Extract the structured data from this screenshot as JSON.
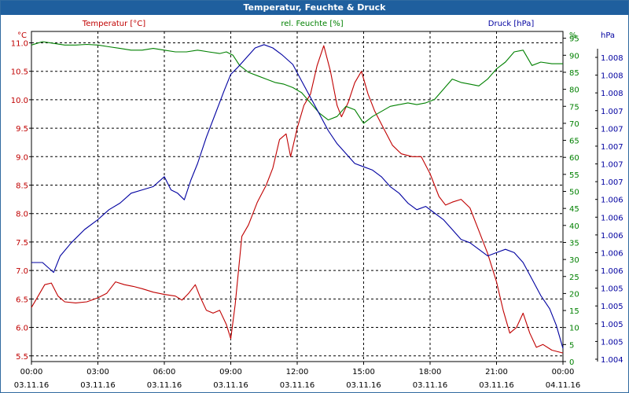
{
  "window": {
    "title": "Temperatur, Feuchte & Druck"
  },
  "chart_data": {
    "type": "line",
    "title": "Temperatur, Feuchte & Druck",
    "x_ticks": [
      {
        "time": "00:00",
        "date": "03.11.16"
      },
      {
        "time": "03:00",
        "date": "03.11.16"
      },
      {
        "time": "06:00",
        "date": "03.11.16"
      },
      {
        "time": "09:00",
        "date": "03.11.16"
      },
      {
        "time": "12:00",
        "date": "03.11.16"
      },
      {
        "time": "15:00",
        "date": "03.11.16"
      },
      {
        "time": "18:00",
        "date": "03.11.16"
      },
      {
        "time": "21:00",
        "date": "03.11.16"
      },
      {
        "time": "00:00",
        "date": "04.11.16"
      }
    ],
    "x_range_hours": [
      0,
      24
    ],
    "grid": true,
    "axes": {
      "temperature": {
        "label": "Temperatur [°C]",
        "unit": "°C",
        "color": "#c00000",
        "range": [
          5.4,
          11.2
        ],
        "ticks": [
          "5.5",
          "6.0",
          "6.5",
          "7.0",
          "7.5",
          "8.0",
          "8.5",
          "9.0",
          "9.5",
          "10.0",
          "10.5",
          "11.0"
        ]
      },
      "humidity": {
        "label": "rel. Feuchte [%]",
        "unit": "%",
        "color": "#008000",
        "range": [
          0,
          97
        ],
        "ticks": [
          "0",
          "5",
          "10",
          "15",
          "20",
          "25",
          "30",
          "35",
          "40",
          "45",
          "50",
          "55",
          "60",
          "65",
          "70",
          "75",
          "80",
          "85",
          "90",
          "95"
        ]
      },
      "pressure": {
        "label": "Druck [hPa]",
        "unit": "hPa",
        "color": "#0000a0",
        "ticks": [
          "1.004",
          "1.005",
          "1.005",
          "1.005",
          "1.005",
          "1.006",
          "1.006",
          "1.006",
          "1.006",
          "1.006",
          "1.007",
          "1.007",
          "1.007",
          "1.007",
          "1.007",
          "1.008",
          "1.008",
          "1.008"
        ]
      }
    },
    "series": [
      {
        "name": "Temperatur [°C]",
        "color": "#c00000",
        "points": [
          [
            0.0,
            6.35
          ],
          [
            0.3,
            6.55
          ],
          [
            0.6,
            6.75
          ],
          [
            0.9,
            6.78
          ],
          [
            1.2,
            6.55
          ],
          [
            1.5,
            6.45
          ],
          [
            2.0,
            6.43
          ],
          [
            2.5,
            6.45
          ],
          [
            3.0,
            6.52
          ],
          [
            3.4,
            6.6
          ],
          [
            3.8,
            6.8
          ],
          [
            4.2,
            6.75
          ],
          [
            4.6,
            6.72
          ],
          [
            5.0,
            6.68
          ],
          [
            5.5,
            6.62
          ],
          [
            6.0,
            6.58
          ],
          [
            6.5,
            6.55
          ],
          [
            6.8,
            6.48
          ],
          [
            7.1,
            6.6
          ],
          [
            7.4,
            6.75
          ],
          [
            7.6,
            6.55
          ],
          [
            7.9,
            6.3
          ],
          [
            8.2,
            6.25
          ],
          [
            8.5,
            6.3
          ],
          [
            8.8,
            6.05
          ],
          [
            9.0,
            5.8
          ],
          [
            9.2,
            6.4
          ],
          [
            9.5,
            7.6
          ],
          [
            9.8,
            7.8
          ],
          [
            10.2,
            8.2
          ],
          [
            10.6,
            8.5
          ],
          [
            10.9,
            8.8
          ],
          [
            11.2,
            9.3
          ],
          [
            11.5,
            9.4
          ],
          [
            11.7,
            9.0
          ],
          [
            12.0,
            9.5
          ],
          [
            12.3,
            9.9
          ],
          [
            12.6,
            10.1
          ],
          [
            12.9,
            10.6
          ],
          [
            13.2,
            10.95
          ],
          [
            13.5,
            10.5
          ],
          [
            13.8,
            9.9
          ],
          [
            14.0,
            9.7
          ],
          [
            14.3,
            9.95
          ],
          [
            14.6,
            10.3
          ],
          [
            14.9,
            10.5
          ],
          [
            15.2,
            10.1
          ],
          [
            15.5,
            9.8
          ],
          [
            15.9,
            9.5
          ],
          [
            16.3,
            9.2
          ],
          [
            16.7,
            9.05
          ],
          [
            17.2,
            9.0
          ],
          [
            17.6,
            9.0
          ],
          [
            18.0,
            8.7
          ],
          [
            18.4,
            8.3
          ],
          [
            18.7,
            8.15
          ],
          [
            19.0,
            8.2
          ],
          [
            19.4,
            8.25
          ],
          [
            19.8,
            8.1
          ],
          [
            20.2,
            7.7
          ],
          [
            20.6,
            7.3
          ],
          [
            21.0,
            6.8
          ],
          [
            21.3,
            6.3
          ],
          [
            21.6,
            5.9
          ],
          [
            21.9,
            6.0
          ],
          [
            22.2,
            6.25
          ],
          [
            22.5,
            5.9
          ],
          [
            22.8,
            5.65
          ],
          [
            23.1,
            5.7
          ],
          [
            23.5,
            5.6
          ],
          [
            24.0,
            5.55
          ]
        ]
      },
      {
        "name": "rel. Feuchte [%]",
        "color": "#008000",
        "points": [
          [
            0.0,
            93
          ],
          [
            0.5,
            94
          ],
          [
            1.0,
            93.5
          ],
          [
            1.5,
            93
          ],
          [
            2.0,
            93
          ],
          [
            2.5,
            93.2
          ],
          [
            3.0,
            93
          ],
          [
            3.5,
            92.5
          ],
          [
            4.0,
            92
          ],
          [
            4.5,
            91.5
          ],
          [
            5.0,
            91.5
          ],
          [
            5.5,
            92
          ],
          [
            6.0,
            91.5
          ],
          [
            6.5,
            91
          ],
          [
            7.0,
            91
          ],
          [
            7.5,
            91.5
          ],
          [
            8.0,
            91
          ],
          [
            8.5,
            90.5
          ],
          [
            8.8,
            91
          ],
          [
            9.1,
            90
          ],
          [
            9.4,
            87
          ],
          [
            9.8,
            85
          ],
          [
            10.2,
            84
          ],
          [
            10.6,
            83
          ],
          [
            11.0,
            82
          ],
          [
            11.4,
            81.5
          ],
          [
            11.8,
            80.5
          ],
          [
            12.2,
            79
          ],
          [
            12.6,
            76
          ],
          [
            13.0,
            73
          ],
          [
            13.4,
            71
          ],
          [
            13.8,
            72
          ],
          [
            14.2,
            75
          ],
          [
            14.6,
            74
          ],
          [
            15.0,
            70
          ],
          [
            15.4,
            72
          ],
          [
            15.8,
            73.5
          ],
          [
            16.2,
            75
          ],
          [
            16.6,
            75.5
          ],
          [
            17.0,
            76
          ],
          [
            17.4,
            75.5
          ],
          [
            17.8,
            76
          ],
          [
            18.2,
            77
          ],
          [
            18.6,
            80
          ],
          [
            19.0,
            83
          ],
          [
            19.4,
            82
          ],
          [
            19.8,
            81.5
          ],
          [
            20.2,
            81
          ],
          [
            20.6,
            83
          ],
          [
            21.0,
            86
          ],
          [
            21.4,
            88
          ],
          [
            21.8,
            91
          ],
          [
            22.2,
            91.5
          ],
          [
            22.6,
            87
          ],
          [
            23.0,
            88
          ],
          [
            23.5,
            87.5
          ],
          [
            24.0,
            87.5
          ]
        ]
      },
      {
        "name": "Druck [hPa]",
        "color": "#0000a0",
        "points": [
          [
            0.0,
            0.3
          ],
          [
            0.5,
            0.3
          ],
          [
            1.0,
            0.27
          ],
          [
            1.3,
            0.32
          ],
          [
            1.8,
            0.36
          ],
          [
            2.4,
            0.4
          ],
          [
            3.0,
            0.43
          ],
          [
            3.5,
            0.46
          ],
          [
            4.0,
            0.48
          ],
          [
            4.5,
            0.51
          ],
          [
            5.0,
            0.52
          ],
          [
            5.5,
            0.53
          ],
          [
            6.0,
            0.56
          ],
          [
            6.3,
            0.52
          ],
          [
            6.6,
            0.51
          ],
          [
            6.9,
            0.49
          ],
          [
            7.2,
            0.55
          ],
          [
            7.5,
            0.6
          ],
          [
            7.9,
            0.68
          ],
          [
            8.3,
            0.75
          ],
          [
            8.7,
            0.82
          ],
          [
            9.0,
            0.87
          ],
          [
            9.3,
            0.89
          ],
          [
            9.7,
            0.92
          ],
          [
            10.1,
            0.95
          ],
          [
            10.5,
            0.96
          ],
          [
            10.9,
            0.95
          ],
          [
            11.3,
            0.93
          ],
          [
            11.8,
            0.9
          ],
          [
            12.2,
            0.85
          ],
          [
            12.6,
            0.8
          ],
          [
            13.0,
            0.75
          ],
          [
            13.4,
            0.7
          ],
          [
            13.8,
            0.66
          ],
          [
            14.2,
            0.63
          ],
          [
            14.6,
            0.6
          ],
          [
            15.0,
            0.59
          ],
          [
            15.4,
            0.58
          ],
          [
            15.8,
            0.56
          ],
          [
            16.2,
            0.53
          ],
          [
            16.6,
            0.51
          ],
          [
            17.0,
            0.48
          ],
          [
            17.4,
            0.46
          ],
          [
            17.8,
            0.47
          ],
          [
            18.2,
            0.45
          ],
          [
            18.6,
            0.43
          ],
          [
            19.0,
            0.4
          ],
          [
            19.4,
            0.37
          ],
          [
            19.8,
            0.36
          ],
          [
            20.2,
            0.34
          ],
          [
            20.6,
            0.32
          ],
          [
            21.0,
            0.33
          ],
          [
            21.4,
            0.34
          ],
          [
            21.8,
            0.33
          ],
          [
            22.2,
            0.3
          ],
          [
            22.6,
            0.25
          ],
          [
            23.0,
            0.2
          ],
          [
            23.4,
            0.16
          ],
          [
            23.7,
            0.11
          ],
          [
            24.0,
            0.04
          ]
        ]
      }
    ]
  }
}
